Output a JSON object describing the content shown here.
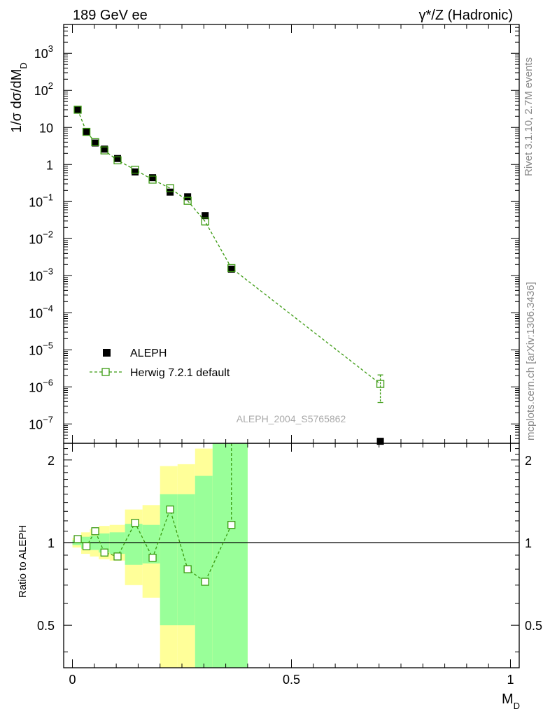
{
  "header": {
    "left_title": "189 GeV ee",
    "right_title": "γ*/Z (Hadronic)"
  },
  "side_labels": {
    "top": "Rivet 3.1.10,  2.7M events",
    "bottom": "mcplots.cern.ch [arXiv:1306.3436]"
  },
  "analysis_id": "ALEPH_2004_S5765862",
  "legend": {
    "data_label": "ALEPH",
    "mc_label": "Herwig 7.2.1 default"
  },
  "colors": {
    "data": "#000000",
    "mc": "#3a9a10",
    "band_inner": "#99ff99",
    "band_outer": "#ffff99"
  },
  "chart_data": [
    {
      "type": "scatter",
      "panel": "main",
      "ylabel": "1/σ  dσ/dM_D",
      "yscale": "log",
      "ylim": [
        3e-08,
        6000
      ],
      "xlim": [
        -0.02,
        1.02
      ],
      "y_ticks": [
        {
          "value": 1e-07,
          "base": "10",
          "exp": "−7"
        },
        {
          "value": 1e-06,
          "base": "10",
          "exp": "−6"
        },
        {
          "value": 1e-05,
          "base": "10",
          "exp": "−5"
        },
        {
          "value": 0.0001,
          "base": "10",
          "exp": "−4"
        },
        {
          "value": 0.001,
          "base": "10",
          "exp": "−3"
        },
        {
          "value": 0.01,
          "base": "10",
          "exp": "−2"
        },
        {
          "value": 0.1,
          "base": "10",
          "exp": "−1"
        },
        {
          "value": 1,
          "base": "1",
          "exp": ""
        },
        {
          "value": 10,
          "base": "10",
          "exp": ""
        },
        {
          "value": 100,
          "base": "10",
          "exp": "2"
        },
        {
          "value": 1000,
          "base": "10",
          "exp": "3"
        }
      ],
      "series": [
        {
          "name": "ALEPH",
          "marker": "filled-square",
          "points": [
            {
              "x": 0.012,
              "y": 30
            },
            {
              "x": 0.032,
              "y": 7.8
            },
            {
              "x": 0.052,
              "y": 3.8
            },
            {
              "x": 0.073,
              "y": 2.6
            },
            {
              "x": 0.103,
              "y": 1.45
            },
            {
              "x": 0.143,
              "y": 0.63
            },
            {
              "x": 0.183,
              "y": 0.44
            },
            {
              "x": 0.223,
              "y": 0.18
            },
            {
              "x": 0.263,
              "y": 0.135
            },
            {
              "x": 0.303,
              "y": 0.042
            },
            {
              "x": 0.363,
              "y": 0.0015
            },
            {
              "x": 0.703,
              "y": 3.4e-08
            }
          ]
        },
        {
          "name": "Herwig 7.2.1 default",
          "marker": "open-square",
          "line": "dashed",
          "points": [
            {
              "x": 0.012,
              "y": 30
            },
            {
              "x": 0.032,
              "y": 7.6
            },
            {
              "x": 0.052,
              "y": 4.0
            },
            {
              "x": 0.073,
              "y": 2.4
            },
            {
              "x": 0.103,
              "y": 1.3
            },
            {
              "x": 0.143,
              "y": 0.72
            },
            {
              "x": 0.183,
              "y": 0.39
            },
            {
              "x": 0.223,
              "y": 0.23
            },
            {
              "x": 0.263,
              "y": 0.105
            },
            {
              "x": 0.303,
              "y": 0.029
            },
            {
              "x": 0.363,
              "y": 0.0016
            },
            {
              "x": 0.703,
              "y": 1.2e-06,
              "ylo": 3.8e-07,
              "yhi": 2.1e-06
            }
          ]
        }
      ]
    },
    {
      "type": "scatter",
      "panel": "ratio",
      "ylabel": "Ratio to ALEPH",
      "xlabel": "M_D",
      "ylim": [
        0.35,
        2.3
      ],
      "xlim": [
        -0.02,
        1.02
      ],
      "x_ticks": [
        "0",
        "0.5",
        "1"
      ],
      "x_tick_values": [
        0,
        0.5,
        1
      ],
      "y_ticks": [
        "0.5",
        "1",
        "2"
      ],
      "y_tick_values": [
        0.5,
        1,
        2
      ],
      "bands": [
        {
          "x0": 0.0,
          "x1": 0.02,
          "inner": [
            0.98,
            1.02
          ],
          "outer": [
            0.96,
            1.04
          ]
        },
        {
          "x0": 0.02,
          "x1": 0.04,
          "inner": [
            0.95,
            1.05
          ],
          "outer": [
            0.91,
            1.09
          ]
        },
        {
          "x0": 0.04,
          "x1": 0.06,
          "inner": [
            0.94,
            1.06
          ],
          "outer": [
            0.89,
            1.12
          ]
        },
        {
          "x0": 0.06,
          "x1": 0.085,
          "inner": [
            0.92,
            1.08
          ],
          "outer": [
            0.87,
            1.15
          ]
        },
        {
          "x0": 0.085,
          "x1": 0.12,
          "inner": [
            0.91,
            1.09
          ],
          "outer": [
            0.86,
            1.16
          ]
        },
        {
          "x0": 0.12,
          "x1": 0.16,
          "inner": [
            0.83,
            1.17
          ],
          "outer": [
            0.7,
            1.32
          ]
        },
        {
          "x0": 0.16,
          "x1": 0.2,
          "inner": [
            0.84,
            1.16
          ],
          "outer": [
            0.63,
            1.37
          ]
        },
        {
          "x0": 0.2,
          "x1": 0.24,
          "inner": [
            0.5,
            1.5
          ],
          "outer": [
            0.35,
            1.9
          ]
        },
        {
          "x0": 0.24,
          "x1": 0.28,
          "inner": [
            0.5,
            1.5
          ],
          "outer": [
            0.35,
            1.93
          ]
        },
        {
          "x0": 0.28,
          "x1": 0.32,
          "inner": [
            0.35,
            1.75
          ],
          "outer": [
            0.35,
            2.2
          ]
        },
        {
          "x0": 0.32,
          "x1": 0.4,
          "inner": [
            0.35,
            2.3
          ],
          "outer": [
            0.35,
            2.3
          ]
        }
      ],
      "series": [
        {
          "name": "Herwig 7.2.1 default",
          "marker": "open-square",
          "line": "dashed",
          "points": [
            {
              "x": 0.012,
              "y": 1.03
            },
            {
              "x": 0.032,
              "y": 0.97
            },
            {
              "x": 0.052,
              "y": 1.1
            },
            {
              "x": 0.073,
              "y": 0.92
            },
            {
              "x": 0.103,
              "y": 0.89
            },
            {
              "x": 0.143,
              "y": 1.18
            },
            {
              "x": 0.183,
              "y": 0.88
            },
            {
              "x": 0.223,
              "y": 1.32
            },
            {
              "x": 0.263,
              "y": 0.8
            },
            {
              "x": 0.303,
              "y": 0.72
            },
            {
              "x": 0.363,
              "y": 1.16,
              "yhi": 2.3
            }
          ]
        }
      ]
    }
  ]
}
